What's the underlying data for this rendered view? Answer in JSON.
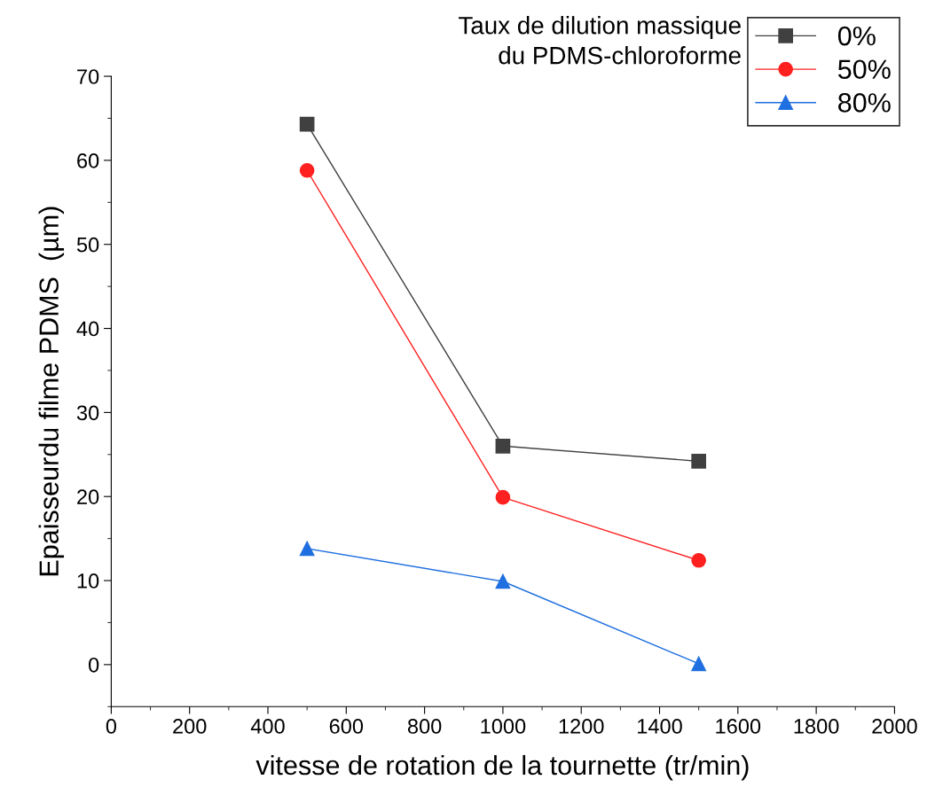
{
  "chart_data": {
    "type": "line",
    "xlabel": "vitesse de rotation de la tournette (tr/min)",
    "ylabel": "Epaisseurdu filme PDMS  (µm)",
    "legend_title": "Taux de dilution massique\ndu PDMS-chloroforme",
    "x": [
      500,
      1000,
      1500
    ],
    "series": [
      {
        "name": "0%",
        "color": "#404040",
        "marker": "square",
        "values": [
          64.3,
          26.0,
          24.2
        ]
      },
      {
        "name": "50%",
        "color": "#ff2020",
        "marker": "circle",
        "values": [
          58.8,
          19.9,
          12.4
        ]
      },
      {
        "name": "80%",
        "color": "#1f6fe0",
        "marker": "triangle",
        "values": [
          13.8,
          9.9,
          0.1
        ]
      }
    ],
    "xlim": [
      0,
      2000
    ],
    "xticks": [
      0,
      200,
      400,
      600,
      800,
      1000,
      1200,
      1400,
      1600,
      1800,
      2000
    ],
    "ylim": [
      -5,
      70
    ],
    "yticks": [
      0,
      10,
      20,
      30,
      40,
      50,
      60,
      70
    ],
    "grid": false,
    "legend": "top right",
    "line_style": "solid"
  }
}
